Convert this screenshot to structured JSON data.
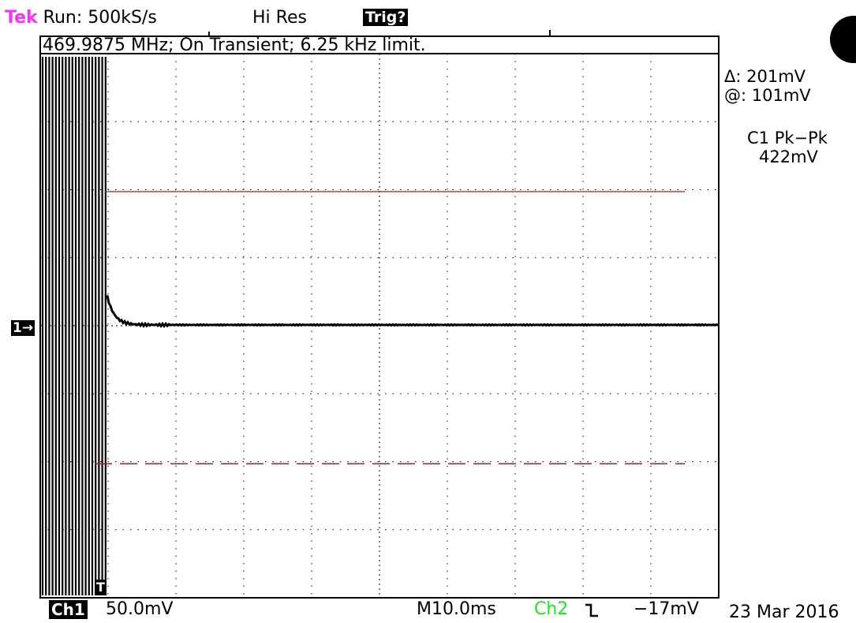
{
  "header": {
    "brand": "Tek",
    "run_status": "Run: 500kS/s",
    "acq_mode": "Hi Res",
    "trigger_status": "Trig?"
  },
  "annotation": "469.9875 MHz; On Transient; 6.25 kHz limit.",
  "cursor_readout": {
    "delta": "Δ: 201mV",
    "at": "@: 101mV"
  },
  "measurement": {
    "label": "C1 Pk−Pk",
    "value": "422mV"
  },
  "channel_marker": "1→",
  "trigger_marker": "T",
  "footer": {
    "channel": "Ch1",
    "ch1_scale": "50.0mV",
    "timebase": "M10.0ms",
    "trigger_source": "Ch2",
    "trigger_slope_icon": "falling-edge-icon",
    "trigger_level": "−17mV",
    "date": "23 Mar 2016"
  },
  "colors": {
    "brand": "#ff2cff",
    "trigger_source": "#22e522",
    "cursor": "#a02020",
    "trace": "#000000"
  }
}
